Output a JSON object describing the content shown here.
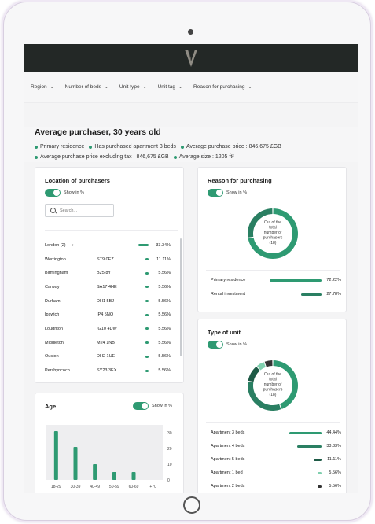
{
  "filters": [
    {
      "label": "Region"
    },
    {
      "label": "Number of beds"
    },
    {
      "label": "Unit type"
    },
    {
      "label": "Unit tag"
    },
    {
      "label": "Reason for purchasing"
    }
  ],
  "headline": "Average purchaser, 30 years old",
  "bullets": {
    "row1": [
      "Primary residence",
      "Has purchased apartment 3 beds",
      "Average purchase price : 846,675 £GB"
    ],
    "row2": [
      "Average purchase price excluding tax : 846,675 £GB",
      "Average size : 1205 ft²"
    ]
  },
  "location": {
    "title": "Location of purchasers",
    "toggle_label": "Show in %",
    "search_placeholder": "Search...",
    "rows": [
      {
        "name": "London (2)",
        "code": "",
        "pct": "33.34%",
        "fraction": 0.3334,
        "chevron": "›"
      },
      {
        "name": "Werrington",
        "code": "ST9 0EZ",
        "pct": "11.11%",
        "fraction": 0.1111
      },
      {
        "name": "Birmingham",
        "code": "B25 8YT",
        "pct": "5.56%",
        "fraction": 0.0556
      },
      {
        "name": "Carway",
        "code": "SA17 4HE",
        "pct": "5.56%",
        "fraction": 0.0556
      },
      {
        "name": "Durham",
        "code": "DH1 5BJ",
        "pct": "5.56%",
        "fraction": 0.0556
      },
      {
        "name": "Ipswich",
        "code": "IP4 5NQ",
        "pct": "5.56%",
        "fraction": 0.0556
      },
      {
        "name": "Loughton",
        "code": "IG10 4DW",
        "pct": "5.56%",
        "fraction": 0.0556
      },
      {
        "name": "Middleton",
        "code": "M24 1NB",
        "pct": "5.56%",
        "fraction": 0.0556
      },
      {
        "name": "Ouston",
        "code": "DH2 1UE",
        "pct": "5.56%",
        "fraction": 0.0556
      },
      {
        "name": "Pershyncoch",
        "code": "SY23 3EX",
        "pct": "5.56%",
        "fraction": 0.0556
      }
    ]
  },
  "reason": {
    "title": "Reason for purchasing",
    "toggle_label": "Show in %",
    "donut_text": [
      "Out of the",
      "total",
      "number of",
      "purchasers",
      "(18)"
    ],
    "rows": [
      {
        "label": "Primary residence",
        "pct": "72.22%",
        "fraction": 0.7222,
        "color": "#2e9a72"
      },
      {
        "label": "Rental investment",
        "pct": "27.78%",
        "fraction": 0.2778,
        "color": "#2a7f62"
      }
    ]
  },
  "unit": {
    "title": "Type of unit",
    "toggle_label": "Show in %",
    "donut_text": [
      "Out of the",
      "total",
      "number of",
      "purchasers",
      "(18)"
    ],
    "rows": [
      {
        "label": "Apartment 3 beds",
        "pct": "44.44%",
        "fraction": 0.4444,
        "color": "#2e9a72"
      },
      {
        "label": "Apartment 4 beds",
        "pct": "33.33%",
        "fraction": 0.3333,
        "color": "#2a7f62"
      },
      {
        "label": "Apartment 5 beds",
        "pct": "11.11%",
        "fraction": 0.1111,
        "color": "#1e5a46"
      },
      {
        "label": "Apartment 1 bed",
        "pct": "5.56%",
        "fraction": 0.0556,
        "color": "#7fcfae"
      },
      {
        "label": "Apartment 2 beds",
        "pct": "5.56%",
        "fraction": 0.0556,
        "color": "#333333"
      }
    ]
  },
  "age": {
    "title": "Age",
    "toggle_label": "Show in %"
  },
  "chart_data": {
    "type": "bar",
    "categories": [
      "18-29",
      "30-39",
      "40-49",
      "50-59",
      "60-69",
      "+70"
    ],
    "values": [
      31,
      21,
      10,
      5,
      5,
      0
    ],
    "title": "",
    "xlabel": "",
    "ylabel": "",
    "ylim": [
      0,
      35
    ],
    "yticks": [
      0,
      10,
      20,
      30
    ],
    "grid": false,
    "color": "#2e9a72"
  }
}
